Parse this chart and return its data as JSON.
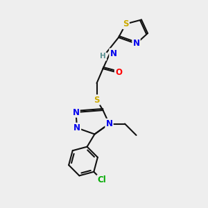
{
  "bg_color": "#eeeeee",
  "atom_colors": {
    "S": "#ccaa00",
    "N": "#0000ee",
    "O": "#ff0000",
    "H": "#5a9090",
    "Cl": "#00aa00",
    "C": "#111111"
  },
  "bond_color": "#111111",
  "bond_width": 1.5,
  "font_size_atom": 8.5
}
